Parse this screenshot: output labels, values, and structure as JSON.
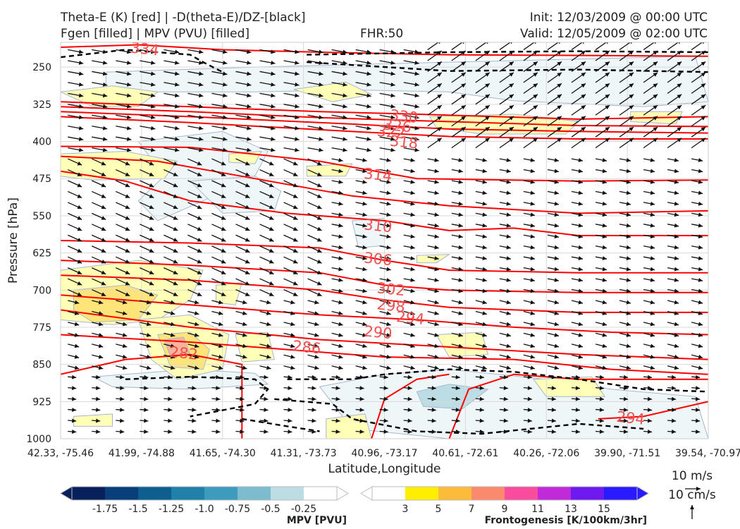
{
  "header": {
    "title_line1": "Theta-E (K) [red] | -D(theta-E)/DZ-[black]",
    "title_line2": "Fgen [filled] | MPV (PVU) [filled]",
    "fhr": "FHR:50",
    "init": "Init: 12/03/2009 @ 00:00 UTC",
    "valid": "Valid: 12/05/2009 @ 02:00 UTC"
  },
  "chart_data": {
    "type": "cross-section",
    "xlabel": "Latitude,Longitude",
    "ylabel": "Pressure [hPa]",
    "ylim": [
      1000,
      200
    ],
    "y_ticks": [
      250,
      325,
      400,
      475,
      550,
      625,
      700,
      775,
      850,
      925,
      1000
    ],
    "x_ticks": [
      "42.33, -75.46",
      "41.99, -74.88",
      "41.65, -74.30",
      "41.31, -73.73",
      "40.96, -73.17",
      "40.61, -72.61",
      "40.26, -72.06",
      "39.90, -71.51",
      "39.54, -70.97"
    ],
    "theta_e_labels": [
      {
        "value": "334",
        "xi": 0.13,
        "p": 215
      },
      {
        "value": "330",
        "xi": 0.53,
        "p": 351
      },
      {
        "value": "326",
        "xi": 0.52,
        "p": 370
      },
      {
        "value": "322",
        "xi": 0.51,
        "p": 383
      },
      {
        "value": "318",
        "xi": 0.53,
        "p": 403
      },
      {
        "value": "314",
        "xi": 0.49,
        "p": 469
      },
      {
        "value": "310",
        "xi": 0.49,
        "p": 572
      },
      {
        "value": "306",
        "xi": 0.49,
        "p": 639
      },
      {
        "value": "302",
        "xi": 0.51,
        "p": 700
      },
      {
        "value": "298",
        "xi": 0.51,
        "p": 733
      },
      {
        "value": "294",
        "xi": 0.54,
        "p": 758
      },
      {
        "value": "290",
        "xi": 0.49,
        "p": 787
      },
      {
        "value": "286",
        "xi": 0.38,
        "p": 817
      },
      {
        "value": "282",
        "xi": 0.19,
        "p": 829
      },
      {
        "value": "294",
        "xi": 0.88,
        "p": 960
      }
    ],
    "grid": true,
    "colorbars": [
      {
        "title": "MPV [PVU]",
        "ticks": [
          "-1.75",
          "-1.5",
          "-1.25",
          "-1.0",
          "-0.75",
          "-0.5",
          "-0.25"
        ],
        "colors": [
          "#08205c",
          "#083f7a",
          "#0e5f8f",
          "#1f80aa",
          "#3d9cbe",
          "#7dbccf",
          "#bddde4",
          "#ffffff"
        ]
      },
      {
        "title": "Frontogenesis [K/100km/3hr]",
        "ticks": [
          "3",
          "5",
          "7",
          "9",
          "11",
          "13",
          "15"
        ],
        "colors": [
          "#ffffff",
          "#ffee00",
          "#fcbc3a",
          "#fb8a6c",
          "#f94c9e",
          "#c02ad9",
          "#6e19ee",
          "#2a1aff"
        ]
      }
    ],
    "wind_key": {
      "u_label": "10 m/s",
      "w_label": "10 cm/s"
    }
  }
}
